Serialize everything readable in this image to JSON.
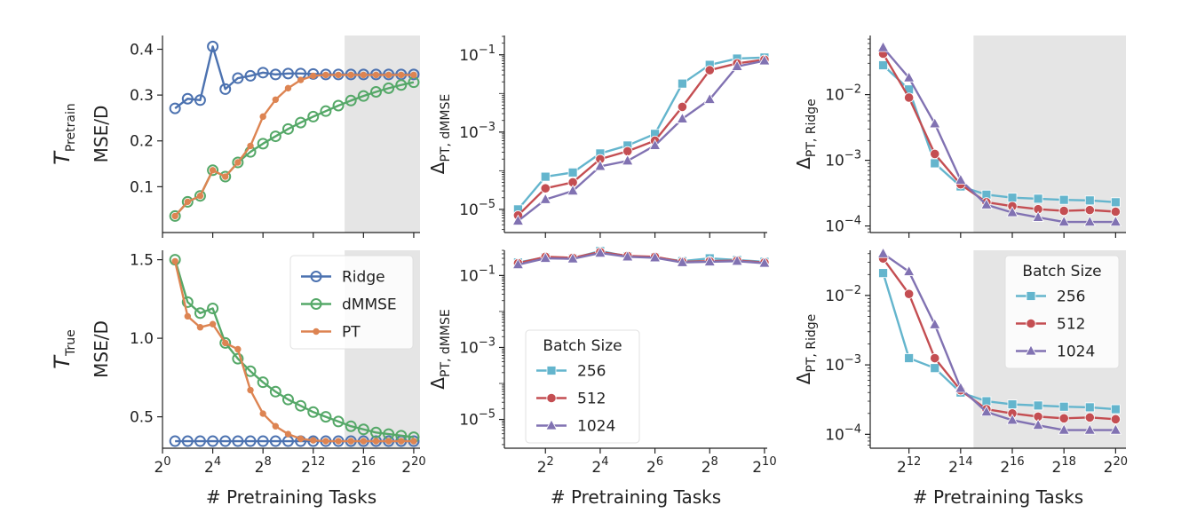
{
  "chart_data": [
    {
      "type": "line",
      "panel": "top-left",
      "row_label": "T",
      "row_label_sub": "Pretrain",
      "ylabel": "MSE/D",
      "xlabel": "",
      "yscale": "linear",
      "ylim": [
        0.0,
        0.43
      ],
      "xlim_log2": [
        0,
        20.5
      ],
      "yticks": [
        "0.1",
        "0.2",
        "0.3",
        "0.4"
      ],
      "ytick_values": [
        0.1,
        0.2,
        0.3,
        0.4
      ],
      "xtick_exps": [
        0,
        4,
        8,
        12,
        16,
        20
      ],
      "xticks_shown": false,
      "shade_from_log2": 14.5,
      "series": [
        {
          "name": "Ridge",
          "color": "#4c72b0",
          "marker": "o-open",
          "x_log2": [
            1,
            2,
            3,
            4,
            5,
            6,
            7,
            8,
            9,
            10,
            11,
            12,
            13,
            14,
            15,
            16,
            17,
            18,
            19,
            20
          ],
          "y": [
            0.271,
            0.292,
            0.289,
            0.406,
            0.313,
            0.337,
            0.342,
            0.349,
            0.345,
            0.347,
            0.347,
            0.346,
            0.345,
            0.345,
            0.345,
            0.345,
            0.345,
            0.345,
            0.345,
            0.345
          ]
        },
        {
          "name": "dMMSE",
          "color": "#55a868",
          "marker": "o-open",
          "x_log2": [
            1,
            2,
            3,
            4,
            5,
            6,
            7,
            8,
            9,
            10,
            11,
            12,
            13,
            14,
            15,
            16,
            17,
            18,
            19,
            20
          ],
          "y": [
            0.036,
            0.067,
            0.08,
            0.136,
            0.122,
            0.153,
            0.176,
            0.194,
            0.21,
            0.226,
            0.24,
            0.253,
            0.265,
            0.277,
            0.288,
            0.298,
            0.307,
            0.315,
            0.322,
            0.328
          ]
        },
        {
          "name": "PT",
          "color": "#dd8452",
          "marker": "o-small",
          "x_log2": [
            1,
            2,
            3,
            4,
            5,
            6,
            7,
            8,
            9,
            10,
            11,
            12,
            13,
            14,
            15,
            16,
            17,
            18,
            19,
            20
          ],
          "y": [
            0.036,
            0.067,
            0.08,
            0.136,
            0.122,
            0.153,
            0.189,
            0.253,
            0.29,
            0.315,
            0.333,
            0.342,
            0.344,
            0.344,
            0.344,
            0.344,
            0.344,
            0.344,
            0.344,
            0.344
          ]
        }
      ]
    },
    {
      "type": "line",
      "panel": "bottom-left",
      "row_label": "T",
      "row_label_sub": "True",
      "ylabel": "MSE/D",
      "xlabel": "# Pretraining Tasks",
      "yscale": "linear",
      "ylim": [
        0.3,
        1.56
      ],
      "xlim_log2": [
        0,
        20.5
      ],
      "yticks": [
        "0.5",
        "1.0",
        "1.5"
      ],
      "ytick_values": [
        0.5,
        1.0,
        1.5
      ],
      "xtick_exps": [
        0,
        4,
        8,
        12,
        16,
        20
      ],
      "xticks_shown": true,
      "xtick_base": "2",
      "xtick_sup": [
        "0",
        "4",
        "8",
        "12",
        "16",
        "20"
      ],
      "shade_from_log2": 14.5,
      "legend": {
        "placement": "upper-right",
        "entries": [
          "Ridge",
          "dMMSE",
          "PT"
        ]
      },
      "series": [
        {
          "name": "Ridge",
          "color": "#4c72b0",
          "marker": "o-open",
          "x_log2": [
            1,
            2,
            3,
            4,
            5,
            6,
            7,
            8,
            9,
            10,
            11,
            12,
            13,
            14,
            15,
            16,
            17,
            18,
            19,
            20
          ],
          "y": [
            0.345,
            0.345,
            0.345,
            0.345,
            0.345,
            0.345,
            0.345,
            0.345,
            0.345,
            0.345,
            0.345,
            0.345,
            0.345,
            0.345,
            0.345,
            0.345,
            0.345,
            0.345,
            0.345,
            0.345
          ]
        },
        {
          "name": "dMMSE",
          "color": "#55a868",
          "marker": "o-open",
          "x_log2": [
            1,
            2,
            3,
            4,
            5,
            6,
            7,
            8,
            9,
            10,
            11,
            12,
            13,
            14,
            15,
            16,
            17,
            18,
            19,
            20
          ],
          "y": [
            1.5,
            1.23,
            1.16,
            1.19,
            0.97,
            0.87,
            0.79,
            0.72,
            0.66,
            0.61,
            0.57,
            0.53,
            0.5,
            0.47,
            0.44,
            0.42,
            0.4,
            0.39,
            0.38,
            0.37
          ]
        },
        {
          "name": "PT",
          "color": "#dd8452",
          "marker": "o-small",
          "x_log2": [
            1,
            2,
            3,
            4,
            5,
            6,
            7,
            8,
            9,
            10,
            11,
            12,
            13,
            14,
            15,
            16,
            17,
            18,
            19,
            20
          ],
          "y": [
            1.49,
            1.14,
            1.07,
            1.09,
            0.97,
            0.93,
            0.67,
            0.52,
            0.44,
            0.39,
            0.36,
            0.35,
            0.345,
            0.345,
            0.345,
            0.345,
            0.345,
            0.345,
            0.345,
            0.345
          ]
        }
      ]
    },
    {
      "type": "line",
      "panel": "top-middle",
      "ylabel": "Δ",
      "ylabel_sub": "PT, dMMSE",
      "xlabel": "",
      "yscale": "log",
      "ylim_log10": [
        -5.6,
        -0.5
      ],
      "xlim_log2": [
        0.5,
        10.1
      ],
      "ytick_exps": [
        -5,
        -3,
        -1
      ],
      "ytick_base": "10",
      "ytick_sup": [
        "−5",
        "−3",
        "−1"
      ],
      "xtick_exps": [
        2,
        4,
        6,
        8,
        10
      ],
      "xticks_shown": false,
      "series": [
        {
          "name": "256",
          "color": "#64b5cd",
          "marker": "square",
          "x_log2": [
            1,
            2,
            3,
            4,
            5,
            6,
            7,
            8,
            9,
            10
          ],
          "y": [
            1e-05,
            7e-05,
            9e-05,
            0.00028,
            0.00045,
            0.0009,
            0.018,
            0.055,
            0.08,
            0.085
          ]
        },
        {
          "name": "512",
          "color": "#c44e52",
          "marker": "circle",
          "x_log2": [
            1,
            2,
            3,
            4,
            5,
            6,
            7,
            8,
            9,
            10
          ],
          "y": [
            7e-06,
            3.5e-05,
            5e-05,
            0.0002,
            0.00032,
            0.0006,
            0.0045,
            0.04,
            0.06,
            0.075
          ]
        },
        {
          "name": "1024",
          "color": "#8172b2",
          "marker": "triangle",
          "x_log2": [
            1,
            2,
            3,
            4,
            5,
            6,
            7,
            8,
            9,
            10
          ],
          "y": [
            5e-06,
            1.8e-05,
            3e-05,
            0.00013,
            0.00018,
            0.00045,
            0.0022,
            0.007,
            0.05,
            0.07
          ]
        }
      ]
    },
    {
      "type": "line",
      "panel": "bottom-middle",
      "ylabel": "Δ",
      "ylabel_sub": "PT, dMMSE",
      "xlabel": "# Pretraining Tasks",
      "yscale": "log",
      "ylim_log10": [
        -5.8,
        -0.3
      ],
      "xlim_log2": [
        0.5,
        10.1
      ],
      "ytick_exps": [
        -5,
        -3,
        -1
      ],
      "ytick_base": "10",
      "ytick_sup": [
        "−5",
        "−3",
        "−1"
      ],
      "xtick_exps": [
        2,
        4,
        6,
        8,
        10
      ],
      "xticks_shown": true,
      "xtick_base": "2",
      "xtick_sup": [
        "2",
        "4",
        "6",
        "8",
        "10"
      ],
      "legend": {
        "placement": "lower-left",
        "title": "Batch Size",
        "entries": [
          "256",
          "512",
          "1024"
        ]
      },
      "series": [
        {
          "name": "256",
          "color": "#64b5cd",
          "marker": "square",
          "x_log2": [
            1,
            2,
            3,
            4,
            5,
            6,
            7,
            8,
            9,
            10
          ],
          "y": [
            0.23,
            0.32,
            0.3,
            0.48,
            0.34,
            0.32,
            0.25,
            0.3,
            0.27,
            0.24
          ]
        },
        {
          "name": "512",
          "color": "#c44e52",
          "marker": "circle",
          "x_log2": [
            1,
            2,
            3,
            4,
            5,
            6,
            7,
            8,
            9,
            10
          ],
          "y": [
            0.22,
            0.33,
            0.31,
            0.45,
            0.35,
            0.33,
            0.24,
            0.25,
            0.26,
            0.23
          ]
        },
        {
          "name": "1024",
          "color": "#8172b2",
          "marker": "triangle",
          "x_log2": [
            1,
            2,
            3,
            4,
            5,
            6,
            7,
            8,
            9,
            10
          ],
          "y": [
            0.2,
            0.3,
            0.29,
            0.42,
            0.33,
            0.31,
            0.23,
            0.24,
            0.25,
            0.22
          ]
        }
      ]
    },
    {
      "type": "line",
      "panel": "top-right",
      "ylabel": "Δ",
      "ylabel_sub": "PT, Ridge",
      "xlabel": "",
      "yscale": "log",
      "ylim_log10": [
        -4.1,
        -1.1
      ],
      "xlim_log2": [
        10.5,
        20.4
      ],
      "ytick_exps": [
        -4,
        -3,
        -2
      ],
      "ytick_base": "10",
      "ytick_sup": [
        "−4",
        "−3",
        "−2"
      ],
      "xtick_exps": [
        12,
        14,
        16,
        18,
        20
      ],
      "xticks_shown": false,
      "shade_from_log2": 14.5,
      "series": [
        {
          "name": "256",
          "color": "#64b5cd",
          "marker": "square",
          "x_log2": [
            11,
            12,
            13,
            14,
            15,
            16,
            17,
            18,
            19,
            20
          ],
          "y": [
            0.028,
            0.012,
            0.0009,
            0.0004,
            0.0003,
            0.00027,
            0.00026,
            0.00025,
            0.000245,
            0.00023
          ]
        },
        {
          "name": "512",
          "color": "#c44e52",
          "marker": "circle",
          "x_log2": [
            11,
            12,
            13,
            14,
            15,
            16,
            17,
            18,
            19,
            20
          ],
          "y": [
            0.042,
            0.009,
            0.00125,
            0.00043,
            0.00023,
            0.0002,
            0.00018,
            0.00017,
            0.000175,
            0.000165
          ]
        },
        {
          "name": "1024",
          "color": "#8172b2",
          "marker": "triangle",
          "x_log2": [
            11,
            12,
            13,
            14,
            15,
            16,
            17,
            18,
            19,
            20
          ],
          "y": [
            0.052,
            0.018,
            0.0036,
            0.0005,
            0.00021,
            0.00016,
            0.000135,
            0.000115,
            0.000115,
            0.000115
          ]
        }
      ]
    },
    {
      "type": "line",
      "panel": "bottom-right",
      "ylabel": "Δ",
      "ylabel_sub": "PT, Ridge",
      "xlabel": "# Pretraining Tasks",
      "yscale": "log",
      "ylim_log10": [
        -4.2,
        -1.35
      ],
      "xlim_log2": [
        10.5,
        20.4
      ],
      "ytick_exps": [
        -4,
        -3,
        -2
      ],
      "ytick_base": "10",
      "ytick_sup": [
        "−4",
        "−3",
        "−2"
      ],
      "xtick_exps": [
        12,
        14,
        16,
        18,
        20
      ],
      "xticks_shown": true,
      "xtick_base": "2",
      "xtick_sup": [
        "12",
        "14",
        "16",
        "18",
        "20"
      ],
      "shade_from_log2": 14.5,
      "legend": {
        "placement": "upper-right",
        "title": "Batch Size",
        "entries": [
          "256",
          "512",
          "1024"
        ]
      },
      "series": [
        {
          "name": "256",
          "color": "#64b5cd",
          "marker": "square",
          "x_log2": [
            11,
            12,
            13,
            14,
            15,
            16,
            17,
            18,
            19,
            20
          ],
          "y": [
            0.021,
            0.00125,
            0.0009,
            0.0004,
            0.0003,
            0.00027,
            0.00026,
            0.00025,
            0.000245,
            0.00023
          ]
        },
        {
          "name": "512",
          "color": "#c44e52",
          "marker": "circle",
          "x_log2": [
            11,
            12,
            13,
            14,
            15,
            16,
            17,
            18,
            19,
            20
          ],
          "y": [
            0.034,
            0.0105,
            0.00125,
            0.00043,
            0.00023,
            0.0002,
            0.00018,
            0.00017,
            0.000175,
            0.000165
          ]
        },
        {
          "name": "1024",
          "color": "#8172b2",
          "marker": "triangle",
          "x_log2": [
            11,
            12,
            13,
            14,
            15,
            16,
            17,
            18,
            19,
            20
          ],
          "y": [
            0.04,
            0.022,
            0.0038,
            0.00046,
            0.00021,
            0.00016,
            0.000135,
            0.000115,
            0.000115,
            0.000115
          ]
        }
      ]
    }
  ]
}
